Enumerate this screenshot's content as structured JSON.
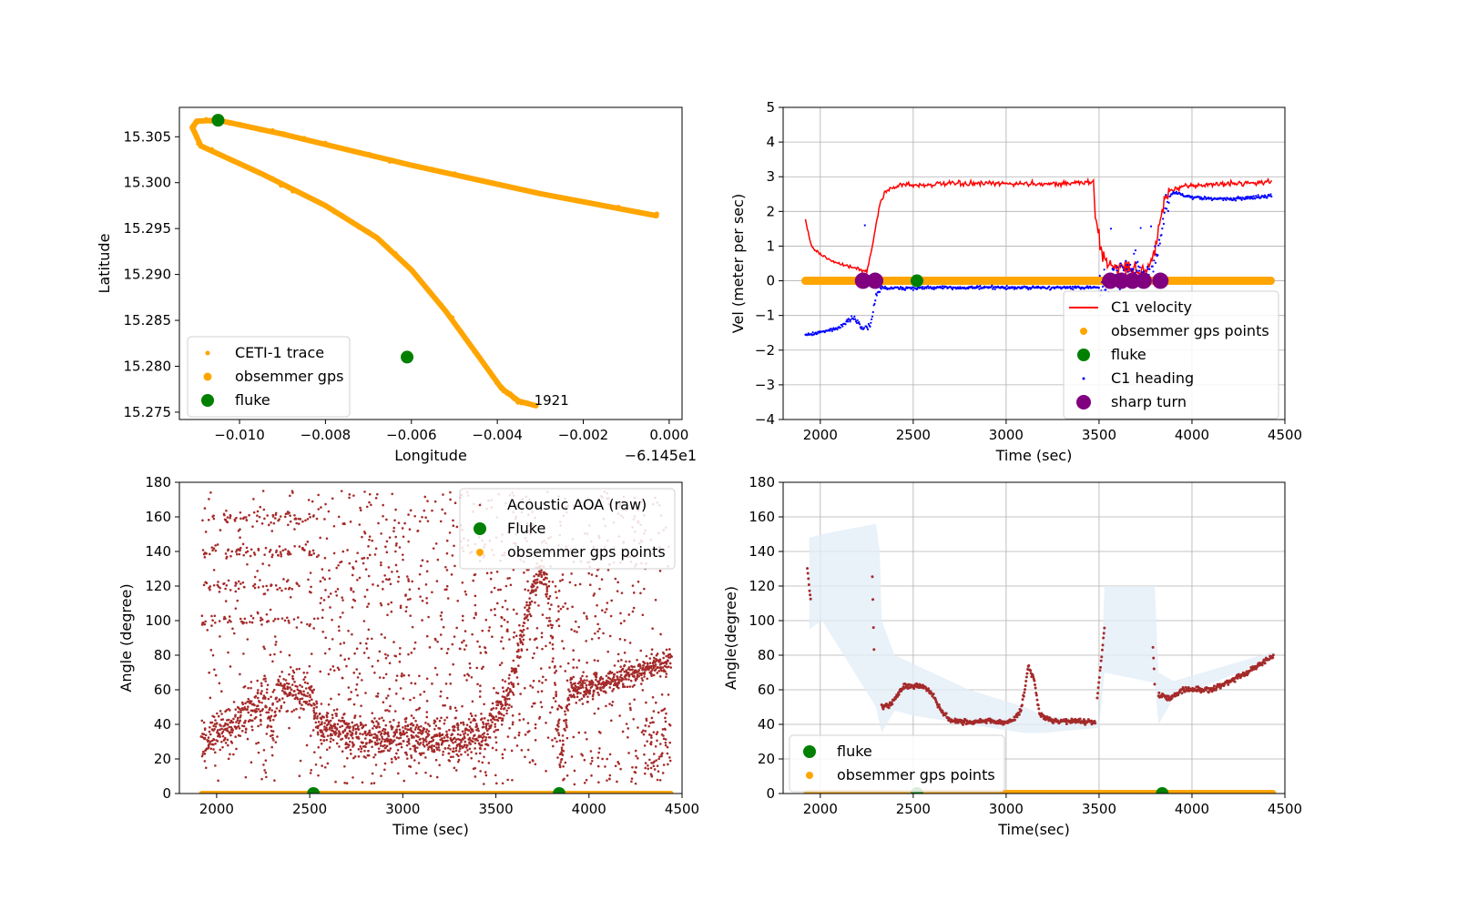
{
  "chart_data": [
    {
      "type": "scatter",
      "xlabel": "Longitude",
      "ylabel": "Latitude",
      "offset_text": "−6.145e1",
      "xlim": [
        -0.0114,
        0.0003
      ],
      "ylim": [
        15.2742,
        15.3082
      ],
      "xticks": [
        -0.01,
        -0.008,
        -0.006,
        -0.004,
        -0.002,
        0.0
      ],
      "xtick_labels": [
        "−0.010",
        "−0.008",
        "−0.006",
        "−0.004",
        "−0.002",
        "0.000"
      ],
      "yticks": [
        15.275,
        15.28,
        15.285,
        15.29,
        15.295,
        15.3,
        15.305
      ],
      "ytick_labels": [
        "15.275",
        "15.280",
        "15.285",
        "15.290",
        "15.295",
        "15.300",
        "15.305"
      ],
      "grid": false,
      "legend_position": "lower-left",
      "annotation": {
        "text": "1921",
        "x": -0.0031,
        "y": 15.2757
      },
      "colors": {
        "trace": "#ffa500",
        "fluke": "#008000"
      },
      "series": [
        {
          "name": "CETI-1 trace",
          "style": "line",
          "points": [
            [
              -0.0003,
              15.2964
            ],
            [
              -0.003,
              15.2988
            ],
            [
              -0.006,
              15.3019
            ],
            [
              -0.009,
              15.3053
            ],
            [
              -0.0105,
              15.3068
            ],
            [
              -0.011,
              15.3067
            ],
            [
              -0.0111,
              15.306
            ],
            [
              -0.0109,
              15.304
            ],
            [
              -0.0095,
              15.301
            ],
            [
              -0.008,
              15.2975
            ],
            [
              -0.0068,
              15.294
            ],
            [
              -0.006,
              15.2905
            ],
            [
              -0.0052,
              15.286
            ],
            [
              -0.0045,
              15.2815
            ],
            [
              -0.0039,
              15.2776
            ],
            [
              -0.0035,
              15.2762
            ],
            [
              -0.0031,
              15.2757
            ]
          ]
        },
        {
          "name": "obsemmer gps",
          "style": "marker"
        },
        {
          "name": "fluke",
          "style": "dot",
          "points": [
            [
              -0.0105,
              15.3068
            ],
            [
              -0.0061,
              15.281
            ]
          ]
        }
      ]
    },
    {
      "type": "line",
      "xlabel": "Time (sec)",
      "ylabel": "Vel (meter per sec)",
      "xlim": [
        1800,
        4500
      ],
      "ylim": [
        -4,
        5
      ],
      "xticks": [
        2000,
        2500,
        3000,
        3500,
        4000,
        4500
      ],
      "yticks": [
        -4,
        -3,
        -2,
        -1,
        0,
        1,
        2,
        3,
        4,
        5
      ],
      "ytick_labels": [
        "−4",
        "−3",
        "−2",
        "−1",
        "0",
        "1",
        "2",
        "3",
        "4",
        "5"
      ],
      "grid": true,
      "legend_position": "lower-right",
      "colors": {
        "velocity": "#ff0000",
        "gps": "#ffa500",
        "fluke": "#008000",
        "heading": "#0000ff",
        "sharp_turn": "#800080"
      },
      "series": [
        {
          "name": "C1 velocity",
          "points": [
            [
              1920,
              1.75
            ],
            [
              1950,
              1.0
            ],
            [
              2000,
              0.75
            ],
            [
              2100,
              0.5
            ],
            [
              2200,
              0.35
            ],
            [
              2250,
              0.25
            ],
            [
              2280,
              1.0
            ],
            [
              2320,
              2.2
            ],
            [
              2350,
              2.6
            ],
            [
              2400,
              2.7
            ],
            [
              2450,
              2.8
            ],
            [
              2500,
              2.75
            ],
            [
              2700,
              2.8
            ],
            [
              3000,
              2.8
            ],
            [
              3300,
              2.8
            ],
            [
              3470,
              2.85
            ],
            [
              3480,
              1.8
            ],
            [
              3520,
              0.7
            ],
            [
              3560,
              0.45
            ],
            [
              3650,
              0.35
            ],
            [
              3750,
              0.3
            ],
            [
              3800,
              0.8
            ],
            [
              3850,
              2.3
            ],
            [
              3880,
              2.6
            ],
            [
              4000,
              2.75
            ],
            [
              4200,
              2.8
            ],
            [
              4430,
              2.85
            ]
          ]
        },
        {
          "name": "obsemmer gps points",
          "range": [
            1920,
            4430
          ],
          "y": 0
        },
        {
          "name": "fluke",
          "points": [
            [
              2520,
              0
            ]
          ]
        },
        {
          "name": "C1 heading",
          "points": [
            [
              1920,
              -1.55
            ],
            [
              2000,
              -1.5
            ],
            [
              2100,
              -1.35
            ],
            [
              2180,
              -1.05
            ],
            [
              2230,
              -1.4
            ],
            [
              2270,
              -1.3
            ],
            [
              2300,
              -0.4
            ],
            [
              2330,
              -0.2
            ],
            [
              2400,
              -0.22
            ],
            [
              2600,
              -0.2
            ],
            [
              3000,
              -0.2
            ],
            [
              3500,
              -0.2
            ],
            [
              3560,
              0.0
            ],
            [
              3600,
              0.2
            ],
            [
              3700,
              0.4
            ],
            [
              3780,
              0.2
            ],
            [
              3820,
              1.0
            ],
            [
              3860,
              2.3
            ],
            [
              3900,
              2.55
            ],
            [
              4000,
              2.4
            ],
            [
              4200,
              2.35
            ],
            [
              4430,
              2.45
            ]
          ]
        },
        {
          "name": "sharp turn",
          "points": [
            [
              2230,
              0
            ],
            [
              2295,
              0
            ],
            [
              3560,
              0
            ],
            [
              3620,
              0
            ],
            [
              3680,
              0
            ],
            [
              3740,
              0
            ],
            [
              3830,
              0
            ]
          ]
        }
      ]
    },
    {
      "type": "scatter",
      "xlabel": "Time (sec)",
      "ylabel": "Angle (degree)",
      "xlim": [
        1800,
        4500
      ],
      "ylim": [
        0,
        180
      ],
      "xticks": [
        2000,
        2500,
        3000,
        3500,
        4000,
        4500
      ],
      "yticks": [
        0,
        20,
        40,
        60,
        80,
        100,
        120,
        140,
        160,
        180
      ],
      "grid": false,
      "legend_position": "upper-right",
      "colors": {
        "aoa": "#a52a2a",
        "fluke": "#008000",
        "gps": "#ffa500"
      },
      "series": [
        {
          "name": "Acoustic AOA (raw)",
          "trend": [
            [
              1920,
              30
            ],
            [
              2100,
              40
            ],
            [
              2250,
              55
            ],
            [
              2300,
              40
            ],
            [
              2330,
              60
            ],
            [
              2400,
              60
            ],
            [
              2500,
              58
            ],
            [
              2550,
              40
            ],
            [
              2700,
              35
            ],
            [
              3000,
              32
            ],
            [
              3300,
              32
            ],
            [
              3450,
              34
            ],
            [
              3500,
              45
            ],
            [
              3550,
              50
            ],
            [
              3600,
              70
            ],
            [
              3650,
              95
            ],
            [
              3700,
              120
            ],
            [
              3750,
              130
            ],
            [
              3790,
              110
            ],
            [
              3820,
              60
            ],
            [
              3850,
              20
            ],
            [
              3880,
              45
            ],
            [
              3900,
              60
            ],
            [
              4000,
              62
            ],
            [
              4200,
              68
            ],
            [
              4440,
              78
            ]
          ],
          "bands": [
            140,
            120,
            100,
            160
          ]
        },
        {
          "name": "Fluke",
          "points": [
            [
              2520,
              0
            ],
            [
              3840,
              0
            ]
          ]
        },
        {
          "name": "obsemmer gps points",
          "range": [
            1920,
            4440
          ],
          "y": 0
        }
      ]
    },
    {
      "type": "scatter",
      "xlabel": "Time(sec)",
      "ylabel": "Angle(degree)",
      "xlim": [
        1800,
        4500
      ],
      "ylim": [
        0,
        180
      ],
      "xticks": [
        2000,
        2500,
        3000,
        3500,
        4000,
        4500
      ],
      "yticks": [
        0,
        20,
        40,
        60,
        80,
        100,
        120,
        140,
        160,
        180
      ],
      "grid": true,
      "legend_position": "lower-left",
      "colors": {
        "aoa": "#a52a2a",
        "band": "#e1ecf7",
        "fluke": "#008000",
        "gps": "#ffa500"
      },
      "uncertainty_upper": [
        [
          1940,
          148
        ],
        [
          2010,
          150
        ],
        [
          2300,
          156
        ],
        [
          2320,
          140
        ],
        [
          2330,
          100
        ],
        [
          2400,
          80
        ],
        [
          2500,
          75
        ],
        [
          2800,
          60
        ],
        [
          3100,
          50
        ],
        [
          3200,
          45
        ],
        [
          3500,
          42
        ],
        [
          3530,
          120
        ],
        [
          3800,
          120
        ],
        [
          3820,
          70
        ],
        [
          3900,
          65
        ],
        [
          4440,
          82
        ]
      ],
      "uncertainty_lower": [
        [
          4440,
          78
        ],
        [
          3900,
          55
        ],
        [
          3820,
          40
        ],
        [
          3800,
          64
        ],
        [
          3530,
          70
        ],
        [
          3500,
          38
        ],
        [
          3200,
          35
        ],
        [
          3100,
          35
        ],
        [
          2800,
          40
        ],
        [
          2500,
          45
        ],
        [
          2400,
          48
        ],
        [
          2330,
          35
        ],
        [
          2320,
          40
        ],
        [
          2300,
          50
        ],
        [
          2010,
          100
        ],
        [
          1940,
          95
        ]
      ],
      "series": [
        {
          "name": "",
          "segments": [
            [
              [
                1930,
                130
              ],
              [
                1950,
                110
              ]
            ],
            [
              [
                2280,
                125
              ],
              [
                2290,
                78
              ]
            ],
            [
              [
                2330,
                50
              ],
              [
                2380,
                52
              ],
              [
                2450,
                62
              ],
              [
                2550,
                62
              ],
              [
                2600,
                58
              ],
              [
                2650,
                48
              ],
              [
                2700,
                42
              ],
              [
                2800,
                41
              ],
              [
                2900,
                42
              ],
              [
                3000,
                41
              ],
              [
                3050,
                44
              ],
              [
                3080,
                48
              ],
              [
                3100,
                60
              ],
              [
                3120,
                74
              ],
              [
                3150,
                66
              ],
              [
                3180,
                46
              ],
              [
                3250,
                42
              ],
              [
                3350,
                42
              ],
              [
                3480,
                41
              ]
            ],
            [
              [
                3490,
                55
              ],
              [
                3510,
                75
              ],
              [
                3530,
                98
              ]
            ],
            [
              [
                3790,
                85
              ],
              [
                3800,
                62
              ]
            ],
            [
              [
                3820,
                57
              ],
              [
                3880,
                55
              ],
              [
                3950,
                60
              ],
              [
                4100,
                60
              ],
              [
                4300,
                70
              ],
              [
                4440,
                80
              ]
            ]
          ]
        },
        {
          "name": "fluke",
          "points": [
            [
              2520,
              0
            ],
            [
              3840,
              0
            ]
          ]
        },
        {
          "name": "obsemmer gps points",
          "range": [
            1930,
            4440
          ],
          "y": 0
        }
      ]
    }
  ]
}
